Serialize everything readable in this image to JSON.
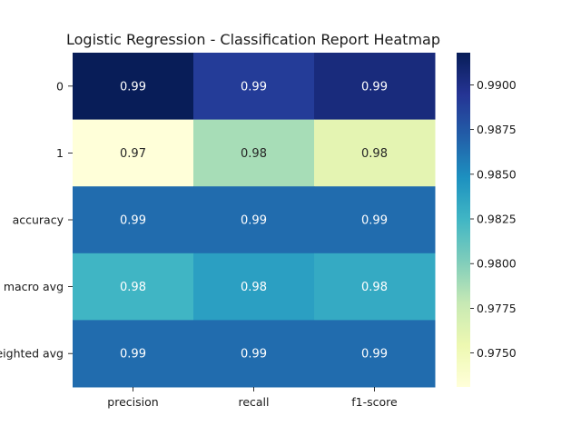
{
  "chart_data": {
    "type": "heatmap",
    "title": "Logistic Regression - Classification Report Heatmap",
    "xlabel": "",
    "ylabel": "",
    "columns": [
      "precision",
      "recall",
      "f1-score"
    ],
    "rows": [
      "0",
      "1",
      "accuracy",
      "macro avg",
      "weighted avg"
    ],
    "values": [
      [
        0.9918,
        0.989,
        0.9904
      ],
      [
        0.9731,
        0.9788,
        0.976
      ],
      [
        0.9865,
        0.9865,
        0.9865
      ],
      [
        0.9825,
        0.9839,
        0.9832
      ],
      [
        0.9865,
        0.9865,
        0.9865
      ]
    ],
    "cell_labels": [
      [
        "0.99",
        "0.99",
        "0.99"
      ],
      [
        "0.97",
        "0.98",
        "0.98"
      ],
      [
        "0.99",
        "0.99",
        "0.99"
      ],
      [
        "0.98",
        "0.98",
        "0.98"
      ],
      [
        "0.99",
        "0.99",
        "0.99"
      ]
    ],
    "colormap": "YlGnBu",
    "colorbar": {
      "range": [
        0.9731,
        0.9918
      ],
      "ticks": [
        0.975,
        0.9775,
        0.98,
        0.9825,
        0.985,
        0.9875,
        0.99
      ],
      "tick_labels": [
        "0.9750",
        "0.9775",
        "0.9800",
        "0.9825",
        "0.9850",
        "0.9875",
        "0.9900"
      ]
    }
  }
}
